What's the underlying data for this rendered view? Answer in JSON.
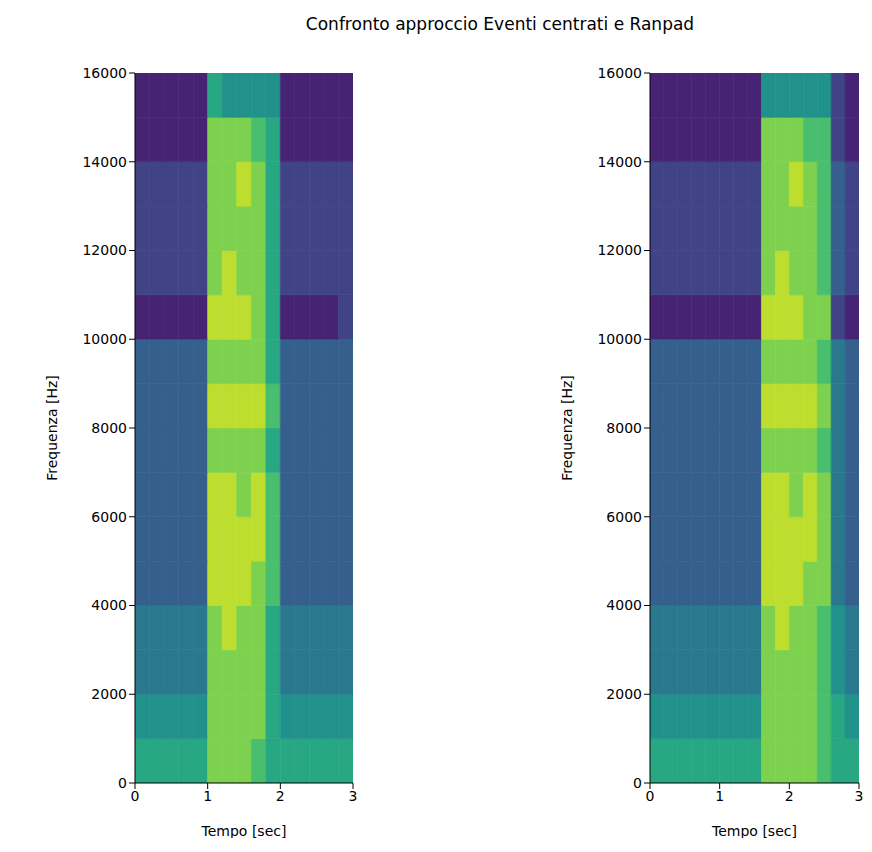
{
  "title": "Confronto approccio Eventi centrati e Ranpad",
  "chart_data": [
    {
      "type": "heatmap",
      "x_label": "Tempo [sec]",
      "y_label": "Frequenza [Hz]",
      "xlim": [
        0,
        3
      ],
      "ylim": [
        0,
        16000
      ],
      "xticks": [
        0,
        1,
        2,
        3
      ],
      "yticks": [
        0,
        2000,
        4000,
        6000,
        8000,
        10000,
        12000,
        14000,
        16000
      ],
      "grid": false,
      "x_bins": [
        0,
        0.2,
        0.4,
        0.6,
        0.8,
        1.0,
        1.2,
        1.4,
        1.6,
        1.8,
        2.0,
        2.2,
        2.4,
        2.6,
        2.8,
        3.0
      ],
      "y_bins": [
        0,
        1000,
        2000,
        3000,
        4000,
        5000,
        6000,
        7000,
        8000,
        9000,
        10000,
        11000,
        12000,
        13000,
        14000,
        15000,
        16000
      ],
      "color_range": [
        0,
        10
      ],
      "cells": [
        [
          6,
          6,
          6,
          6,
          6,
          8,
          8,
          8,
          7,
          6,
          6,
          6,
          6,
          6,
          6
        ],
        [
          5,
          5,
          5,
          5,
          5,
          8,
          8,
          8,
          8,
          6,
          5,
          5,
          5,
          5,
          5
        ],
        [
          4,
          4,
          4,
          4,
          4,
          8,
          8,
          8,
          8,
          6,
          4,
          4,
          4,
          4,
          4
        ],
        [
          4,
          4,
          4,
          4,
          4,
          8,
          9,
          8,
          8,
          6,
          4,
          4,
          4,
          4,
          4
        ],
        [
          3,
          3,
          3,
          3,
          3,
          9,
          9,
          9,
          8,
          7,
          3,
          3,
          3,
          3,
          3
        ],
        [
          3,
          3,
          3,
          3,
          3,
          9,
          9,
          9,
          9,
          7,
          3,
          3,
          3,
          3,
          3
        ],
        [
          3,
          3,
          3,
          3,
          3,
          9,
          9,
          8,
          9,
          7,
          3,
          3,
          3,
          3,
          3
        ],
        [
          3,
          3,
          3,
          3,
          3,
          8,
          8,
          8,
          8,
          6,
          3,
          3,
          3,
          3,
          3
        ],
        [
          3,
          3,
          3,
          3,
          3,
          9,
          9,
          9,
          9,
          7,
          3,
          3,
          3,
          3,
          3
        ],
        [
          3,
          3,
          3,
          3,
          3,
          8,
          8,
          8,
          8,
          6,
          3,
          3,
          3,
          3,
          3
        ],
        [
          1,
          1,
          1,
          1,
          1,
          9,
          9,
          9,
          8,
          6,
          1,
          1,
          1,
          1,
          2
        ],
        [
          2,
          2,
          2,
          2,
          2,
          8,
          9,
          8,
          8,
          6,
          2,
          2,
          2,
          2,
          2
        ],
        [
          2,
          2,
          2,
          2,
          2,
          8,
          8,
          8,
          8,
          6,
          2,
          2,
          2,
          2,
          2
        ],
        [
          2,
          2,
          2,
          2,
          2,
          8,
          8,
          9,
          8,
          6,
          2,
          2,
          2,
          2,
          2
        ],
        [
          1,
          1,
          1,
          1,
          1,
          8,
          8,
          8,
          7,
          6,
          1,
          1,
          1,
          1,
          1
        ],
        [
          1,
          1,
          1,
          1,
          1,
          6,
          5,
          5,
          5,
          5,
          1,
          1,
          1,
          1,
          1
        ]
      ]
    },
    {
      "type": "heatmap",
      "x_label": "Tempo [sec]",
      "y_label": "Frequenza [Hz]",
      "xlim": [
        0,
        3
      ],
      "ylim": [
        0,
        16000
      ],
      "xticks": [
        0,
        1,
        2,
        3
      ],
      "yticks": [
        0,
        2000,
        4000,
        6000,
        8000,
        10000,
        12000,
        14000,
        16000
      ],
      "grid": false,
      "x_bins": [
        0,
        0.2,
        0.4,
        0.6,
        0.8,
        1.0,
        1.2,
        1.4,
        1.6,
        1.8,
        2.0,
        2.2,
        2.4,
        2.6,
        2.8,
        3.0
      ],
      "y_bins": [
        0,
        1000,
        2000,
        3000,
        4000,
        5000,
        6000,
        7000,
        8000,
        9000,
        10000,
        11000,
        12000,
        13000,
        14000,
        15000,
        16000
      ],
      "color_range": [
        0,
        10
      ],
      "cells": [
        [
          6,
          6,
          6,
          6,
          6,
          6,
          6,
          6,
          8,
          8,
          8,
          8,
          7,
          6,
          6
        ],
        [
          5,
          5,
          5,
          5,
          5,
          5,
          5,
          5,
          8,
          8,
          8,
          8,
          7,
          6,
          5
        ],
        [
          4,
          4,
          4,
          4,
          4,
          4,
          4,
          4,
          8,
          8,
          8,
          8,
          7,
          5,
          4
        ],
        [
          4,
          4,
          4,
          4,
          4,
          4,
          4,
          4,
          8,
          9,
          8,
          8,
          7,
          5,
          4
        ],
        [
          3,
          3,
          3,
          3,
          3,
          3,
          3,
          3,
          9,
          9,
          9,
          8,
          8,
          4,
          3
        ],
        [
          3,
          3,
          3,
          3,
          3,
          3,
          3,
          3,
          9,
          9,
          9,
          9,
          8,
          4,
          3
        ],
        [
          3,
          3,
          3,
          3,
          3,
          3,
          3,
          3,
          9,
          9,
          8,
          9,
          8,
          4,
          3
        ],
        [
          3,
          3,
          3,
          3,
          3,
          3,
          3,
          3,
          8,
          8,
          8,
          8,
          7,
          4,
          3
        ],
        [
          3,
          3,
          3,
          3,
          3,
          3,
          3,
          3,
          9,
          9,
          9,
          9,
          8,
          4,
          3
        ],
        [
          3,
          3,
          3,
          3,
          3,
          3,
          3,
          3,
          8,
          8,
          8,
          8,
          7,
          4,
          3
        ],
        [
          1,
          1,
          1,
          1,
          1,
          1,
          1,
          1,
          9,
          9,
          9,
          8,
          8,
          2,
          1
        ],
        [
          2,
          2,
          2,
          2,
          2,
          2,
          2,
          2,
          8,
          9,
          8,
          8,
          7,
          3,
          2
        ],
        [
          2,
          2,
          2,
          2,
          2,
          2,
          2,
          2,
          8,
          8,
          8,
          8,
          7,
          3,
          2
        ],
        [
          2,
          2,
          2,
          2,
          2,
          2,
          2,
          2,
          8,
          8,
          9,
          8,
          7,
          3,
          2
        ],
        [
          1,
          1,
          1,
          1,
          1,
          1,
          1,
          1,
          8,
          8,
          8,
          7,
          7,
          2,
          1
        ],
        [
          1,
          1,
          1,
          1,
          1,
          1,
          1,
          1,
          5,
          5,
          5,
          5,
          5,
          2,
          1
        ]
      ]
    }
  ]
}
